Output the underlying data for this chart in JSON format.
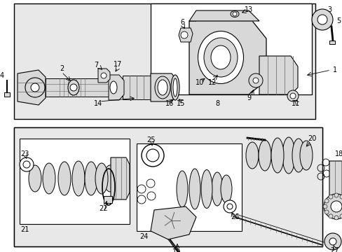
{
  "white": "#ffffff",
  "black": "#000000",
  "light_gray": "#d8d8d8",
  "mid_gray": "#b0b0b0",
  "dark_gray": "#606060",
  "bg_gray": "#e8e8e8"
}
